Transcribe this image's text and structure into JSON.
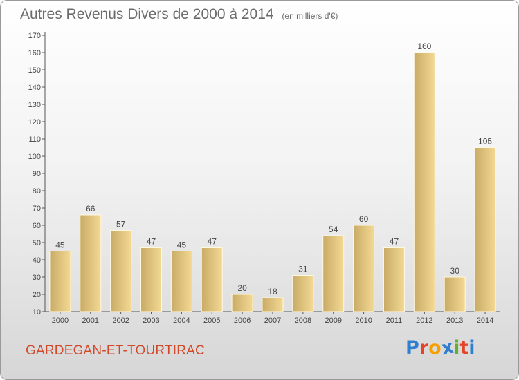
{
  "header": {
    "title": "Autres Revenus Divers de 2000 à 2014",
    "subtitle": "(en milliers d'€)"
  },
  "footer": {
    "city": "GARDEGAN-ET-TOURTIRAC",
    "logo_text": "Proxiti",
    "logo_colors": [
      "#2f7fcf",
      "#e5442b",
      "#f5a000",
      "#2f7fcf",
      "#63b02c",
      "#e5442b",
      "#2f7fcf"
    ]
  },
  "colors": {
    "bar_light": "#f3d994",
    "bar_dark": "#c8ab66",
    "axis": "#555555",
    "grid": "#cccccc",
    "label": "#444444",
    "city": "#d2492a"
  },
  "chart_data": {
    "type": "bar",
    "categories": [
      "2000",
      "2001",
      "2002",
      "2003",
      "2004",
      "2005",
      "2006",
      "2007",
      "2008",
      "2009",
      "2010",
      "2011",
      "2012",
      "2013",
      "2014"
    ],
    "values": [
      45,
      66,
      57,
      47,
      45,
      47,
      20,
      18,
      31,
      54,
      60,
      47,
      160,
      30,
      105
    ],
    "ylim": [
      10,
      170
    ],
    "yticks": [
      10,
      20,
      30,
      40,
      50,
      60,
      70,
      80,
      90,
      100,
      110,
      120,
      130,
      140,
      150,
      160,
      170
    ],
    "grid": false,
    "legend": "none"
  }
}
